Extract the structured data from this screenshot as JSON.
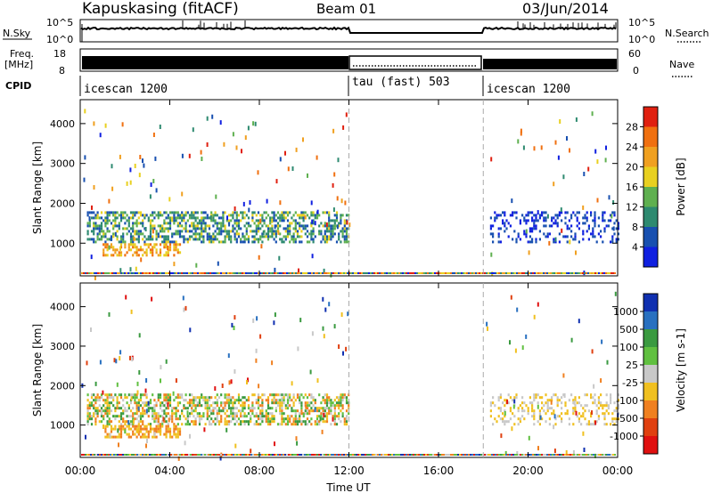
{
  "header": {
    "station": "Kapuskasing (fitACF)",
    "beam": "Beam 01",
    "date": "03/Jun/2014"
  },
  "status_panels": {
    "nsky_label": "N.Sky",
    "nsearch_label": "N.Search",
    "noise_tick_top": "10^5",
    "noise_tick_bottom": "10^0",
    "freq_label": "Freq.",
    "freq_unit": "[MHz]",
    "freq_tick_top": "18",
    "freq_tick_bottom": "8",
    "nave_label": "Nave",
    "nave_tick_top": "60",
    "nave_tick_bottom": "0",
    "cpid_label": "CPID",
    "cpid_segments": [
      {
        "label": "icescan 1200",
        "start_hour": 0,
        "end_hour": 12
      },
      {
        "label": "tau (fast) 503",
        "start_hour": 12,
        "end_hour": 18
      },
      {
        "label": "icescan 1200",
        "start_hour": 18,
        "end_hour": 24
      }
    ]
  },
  "x_axis": {
    "title": "Time UT",
    "range_hours": [
      0,
      24
    ],
    "tick_labels": [
      "00:00",
      "04:00",
      "08:00",
      "12:00",
      "16:00",
      "20:00",
      "00:00"
    ]
  },
  "chart_data": [
    {
      "type": "heatmap",
      "quantity": "Power",
      "ylabel": "Slant Range [km]",
      "ylim": [
        180,
        4600
      ],
      "y_ticks": [
        1000,
        2000,
        3000,
        4000
      ],
      "colorbar_label": "Power [dB]",
      "colorbar_ticks": [
        "4",
        "8",
        "12",
        "16",
        "20",
        "24",
        "28"
      ],
      "colors": [
        "#1020e0",
        "#1850b0",
        "#2e8a70",
        "#5fb050",
        "#e8d020",
        "#f0a020",
        "#f07010",
        "#e02010"
      ],
      "echo_regions": [
        {
          "start_hour": 0.3,
          "end_hour": 12.0,
          "range_km": [
            1000,
            1800
          ],
          "level": "8-16 dB"
        },
        {
          "start_hour": 1.0,
          "end_hour": 4.5,
          "range_km": [
            700,
            1000
          ],
          "level": "16-24 dB"
        },
        {
          "start_hour": 18.3,
          "end_hour": 24.0,
          "range_km": [
            1000,
            1800
          ],
          "level": "4-8 dB"
        }
      ]
    },
    {
      "type": "heatmap",
      "quantity": "Velocity",
      "ylabel": "Slant Range [km]",
      "ylim": [
        180,
        4600
      ],
      "y_ticks": [
        1000,
        2000,
        3000,
        4000
      ],
      "colorbar_label": "Velocity [m s-1]",
      "colorbar_ticks": [
        "1000",
        "500",
        "100",
        "25",
        "-25",
        "-100",
        "-500",
        "-1000"
      ],
      "colors": [
        "#1030b0",
        "#2870c0",
        "#3a9a40",
        "#60c040",
        "#c8c8c8",
        "#f0c020",
        "#f08020",
        "#e04010",
        "#e01010"
      ],
      "echo_regions": [
        {
          "start_hour": 0.3,
          "end_hour": 12.0,
          "range_km": [
            1000,
            1800
          ],
          "level": "-100 to 100 m/s"
        },
        {
          "start_hour": 1.0,
          "end_hour": 4.5,
          "range_km": [
            700,
            1000
          ],
          "level": "-500 to -100 m/s"
        },
        {
          "start_hour": 18.3,
          "end_hour": 24.0,
          "range_km": [
            1000,
            1800
          ],
          "level": "-25 to 25 m/s"
        }
      ]
    }
  ]
}
